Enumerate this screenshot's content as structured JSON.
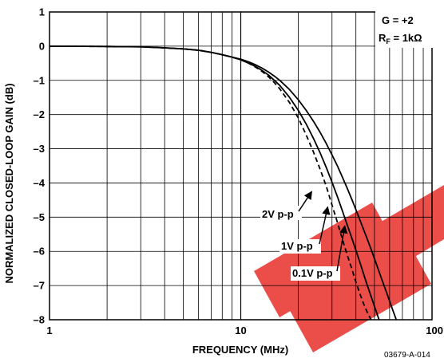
{
  "chart_data": {
    "type": "line",
    "xlabel": "FREQUENCY (MHz)",
    "ylabel": "NORMALIZED CLOSED-LOOP GAIN (dB)",
    "x_scale": "log",
    "xlim": [
      1,
      100
    ],
    "ylim": [
      -8,
      1
    ],
    "x_ticks": [
      "1",
      "10",
      "100"
    ],
    "y_ticks": [
      "1",
      "0",
      "–1",
      "–2",
      "–3",
      "–4",
      "–5",
      "–6",
      "–7",
      "–8"
    ],
    "grid": true,
    "conditions": {
      "gain": "G = +2",
      "rf_prefix": "R",
      "rf_sub": "F",
      "rf_value": " = 1kΩ"
    },
    "series": [
      {
        "name": "2V p-p",
        "style": "dashed",
        "x": [
          1,
          2,
          3,
          4,
          5,
          6,
          7,
          8,
          9,
          10,
          11,
          12,
          13,
          14,
          15,
          16,
          18,
          20,
          22,
          24,
          26,
          28,
          30,
          32,
          34,
          36,
          38,
          40,
          42,
          44,
          46,
          48,
          50
        ],
        "y": [
          0,
          -0.01,
          -0.02,
          -0.05,
          -0.08,
          -0.12,
          -0.18,
          -0.25,
          -0.32,
          -0.4,
          -0.5,
          -0.62,
          -0.75,
          -0.9,
          -1.07,
          -1.25,
          -1.65,
          -2.1,
          -2.6,
          -3.1,
          -3.6,
          -4.1,
          -4.65,
          -5.15,
          -5.65,
          -6.1,
          -6.5,
          -6.9,
          -7.25,
          -7.55,
          -7.8,
          -8.0,
          -8.1
        ]
      },
      {
        "name": "1V p-p",
        "style": "solid",
        "x": [
          1,
          2,
          3,
          4,
          5,
          6,
          7,
          8,
          9,
          10,
          11,
          12,
          13,
          14,
          15,
          16,
          18,
          20,
          22,
          24,
          26,
          28,
          30,
          32,
          34,
          36,
          38,
          40,
          42,
          45,
          48,
          51,
          54,
          56
        ],
        "y": [
          0,
          -0.01,
          -0.02,
          -0.05,
          -0.08,
          -0.12,
          -0.18,
          -0.25,
          -0.32,
          -0.4,
          -0.5,
          -0.6,
          -0.72,
          -0.85,
          -1.0,
          -1.15,
          -1.5,
          -1.88,
          -2.28,
          -2.7,
          -3.12,
          -3.55,
          -3.98,
          -4.4,
          -4.82,
          -5.22,
          -5.6,
          -5.97,
          -6.33,
          -6.85,
          -7.32,
          -7.75,
          -8.15,
          -8.4
        ]
      },
      {
        "name": "0.1V p-p",
        "style": "solid",
        "x": [
          1,
          2,
          3,
          4,
          5,
          6,
          7,
          8,
          9,
          10,
          11,
          12,
          13,
          14,
          15,
          16,
          18,
          20,
          22,
          24,
          26,
          28,
          30,
          32,
          34,
          36,
          38,
          40,
          42,
          45,
          48,
          51,
          54,
          58,
          62,
          66,
          68
        ],
        "y": [
          0,
          -0.01,
          -0.02,
          -0.05,
          -0.08,
          -0.12,
          -0.18,
          -0.25,
          -0.32,
          -0.38,
          -0.46,
          -0.55,
          -0.65,
          -0.76,
          -0.88,
          -1.0,
          -1.27,
          -1.57,
          -1.88,
          -2.2,
          -2.52,
          -2.85,
          -3.18,
          -3.5,
          -3.83,
          -4.15,
          -4.47,
          -4.78,
          -5.09,
          -5.52,
          -5.94,
          -6.35,
          -6.74,
          -7.22,
          -7.68,
          -8.1,
          -8.3
        ]
      }
    ],
    "annotations": [
      {
        "text": "2V p-p",
        "arrow_to": {
          "x": 23.5,
          "y": -4.25
        }
      },
      {
        "text": "1V p-p",
        "arrow_to": {
          "x": 28.5,
          "y": -4.7
        }
      },
      {
        "text": "0.1V p-p",
        "arrow_to": {
          "x": 35.0,
          "y": -5.25
        }
      }
    ],
    "figure_code": "03679-A-014"
  },
  "colors": {
    "axis": "#000000",
    "grid": "#000000",
    "watermark": "#e8302a"
  }
}
